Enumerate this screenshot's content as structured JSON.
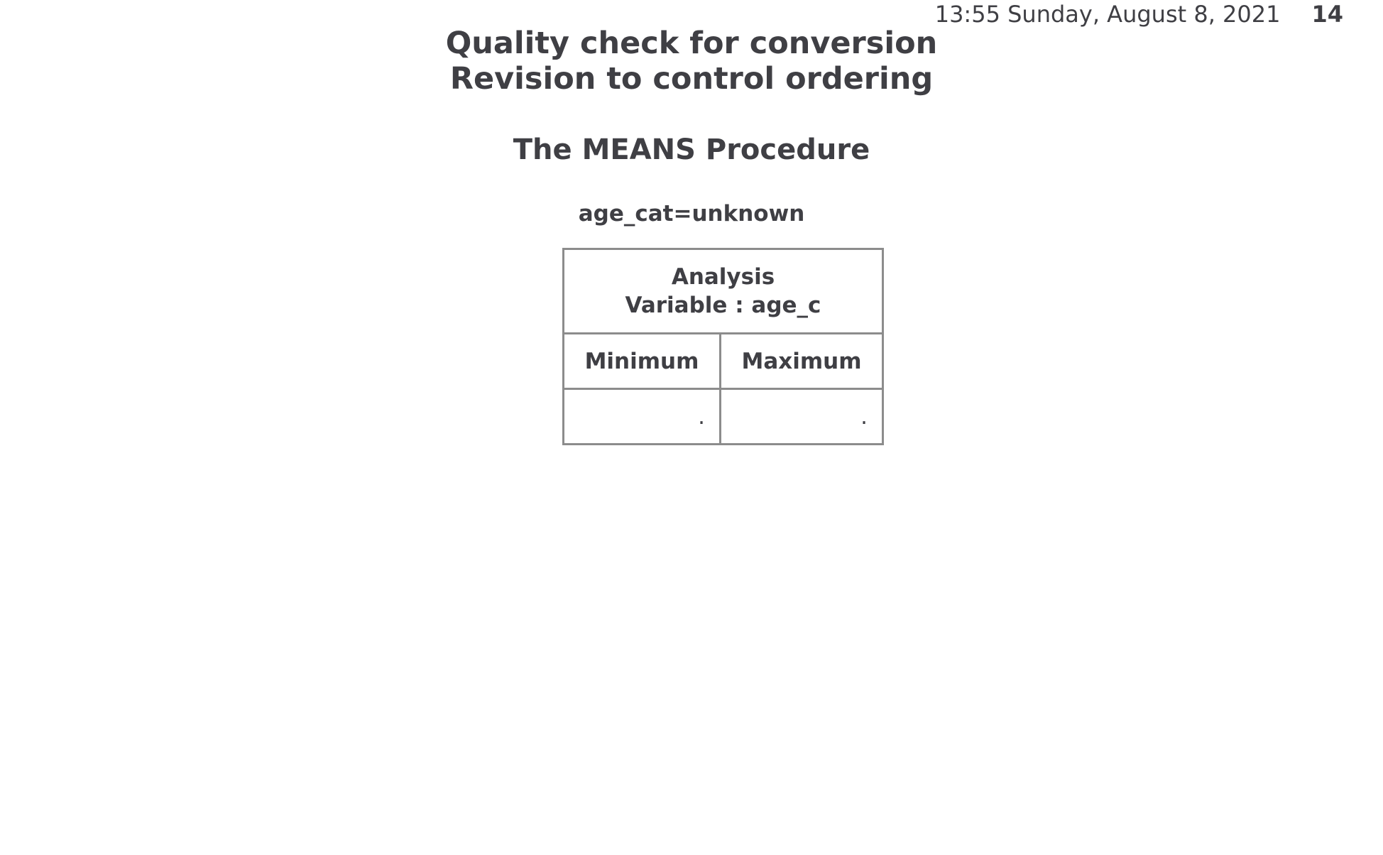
{
  "header": {
    "timestamp": "13:55 Sunday, August 8, 2021",
    "page_number": "14"
  },
  "titles": {
    "line1": "Quality check for conversion",
    "line2": "Revision to control ordering"
  },
  "procedure_title": "The MEANS Procedure",
  "by_group": "age_cat=unknown",
  "table": {
    "header_line1": "Analysis",
    "header_line2": "Variable : age_c",
    "columns": [
      "Minimum",
      "Maximum"
    ],
    "rows": [
      [
        ".",
        "."
      ]
    ]
  }
}
